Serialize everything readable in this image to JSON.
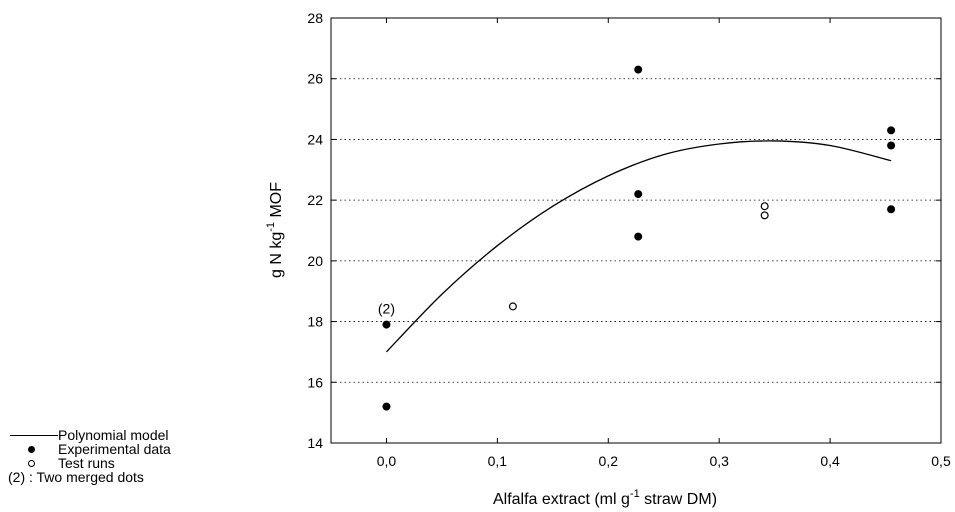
{
  "chart_data": {
    "type": "scatter",
    "xlabel_main": "Alfalfa extract (ml g",
    "xlabel_sup": "-1",
    "xlabel_tail": " straw DM)",
    "ylabel_main": "g N kg",
    "ylabel_sup": "-1",
    "ylabel_tail": " MOF",
    "xlim": [
      -0.05,
      0.5
    ],
    "ylim": [
      14,
      28
    ],
    "x_ticks": [
      0.0,
      0.1,
      0.2,
      0.3,
      0.4,
      0.5
    ],
    "x_tick_labels": [
      "0,0",
      "0,1",
      "0,2",
      "0,3",
      "0,4",
      "0,5"
    ],
    "y_ticks": [
      14,
      16,
      18,
      20,
      22,
      24,
      26,
      28
    ],
    "y_tick_labels": [
      "14",
      "16",
      "18",
      "20",
      "22",
      "24",
      "26",
      "28"
    ],
    "grid": "horizontal dotted",
    "series": [
      {
        "name": "Experimental data",
        "marker": "filled",
        "points": [
          [
            0.0,
            15.2
          ],
          [
            0.0,
            17.9
          ],
          [
            0.227,
            26.3
          ],
          [
            0.227,
            22.2
          ],
          [
            0.227,
            20.8
          ],
          [
            0.455,
            24.3
          ],
          [
            0.455,
            23.8
          ],
          [
            0.455,
            21.7
          ]
        ]
      },
      {
        "name": "Test runs",
        "marker": "open",
        "points": [
          [
            0.114,
            18.5
          ],
          [
            0.341,
            21.8
          ],
          [
            0.341,
            21.5
          ]
        ]
      },
      {
        "name": "Polynomial model",
        "marker": "line",
        "points": [
          [
            0.0,
            17.0
          ],
          [
            0.05,
            18.9
          ],
          [
            0.1,
            20.5
          ],
          [
            0.15,
            21.8
          ],
          [
            0.2,
            22.8
          ],
          [
            0.25,
            23.5
          ],
          [
            0.3,
            23.85
          ],
          [
            0.35,
            23.95
          ],
          [
            0.4,
            23.8
          ],
          [
            0.455,
            23.3
          ]
        ]
      }
    ],
    "annotations": [
      {
        "text": "(2)",
        "x": 0.0,
        "y": 17.9
      }
    ],
    "legend": {
      "placement": "bottom-left outside",
      "entries": [
        {
          "symbol": "line",
          "label": "Polynomial model"
        },
        {
          "symbol": "filled",
          "label": "Experimental data"
        },
        {
          "symbol": "open",
          "label": "Test runs"
        },
        {
          "symbol": "note",
          "label": "(2) : Two merged dots"
        }
      ]
    }
  }
}
